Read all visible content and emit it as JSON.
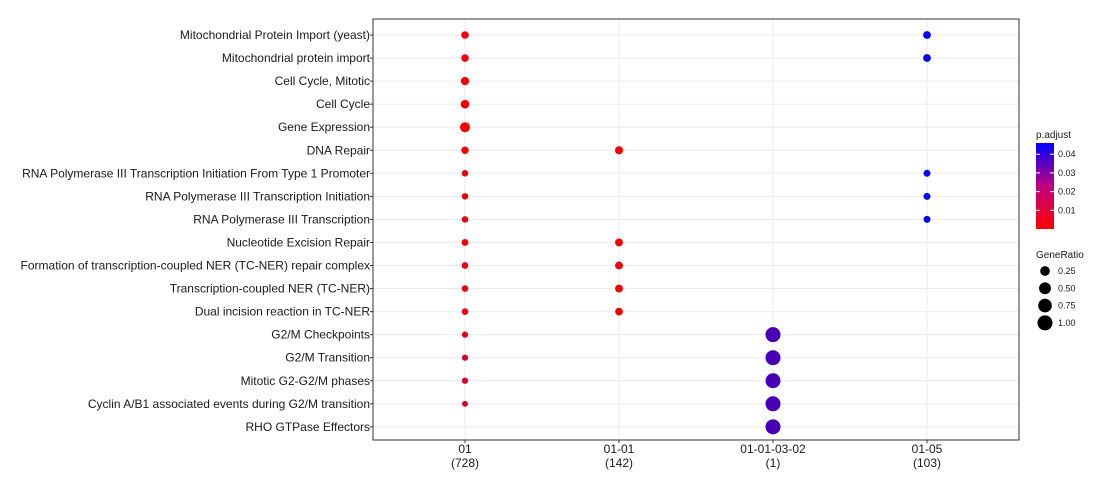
{
  "chart_data": {
    "type": "scatter",
    "title": "",
    "xlabel": "",
    "ylabel": "",
    "grid": true,
    "categories_y": [
      "Mitochondrial Protein Import (yeast)",
      "Mitochondrial protein import",
      "Cell Cycle, Mitotic",
      "Cell Cycle",
      "Gene Expression",
      "DNA Repair",
      "RNA Polymerase III Transcription Initiation From Type 1 Promoter",
      "RNA Polymerase III Transcription Initiation",
      "RNA Polymerase III Transcription",
      "Nucleotide Excision Repair",
      "Formation of transcription-coupled NER (TC-NER) repair complex",
      "Transcription-coupled NER (TC-NER)",
      "Dual incision reaction in TC-NER",
      "G2/M Checkpoints",
      "G2/M Transition",
      "Mitotic G2-G2/M phases",
      "Cyclin A/B1 associated events during G2/M transition",
      "RHO GTPase Effectors"
    ],
    "categories_x": [
      {
        "name": "01",
        "count": "(728)"
      },
      {
        "name": "01-01",
        "count": "(142)"
      },
      {
        "name": "01-01-03-02",
        "count": "(1)"
      },
      {
        "name": "01-05",
        "count": "(103)"
      }
    ],
    "points": [
      {
        "x": "01",
        "y": "Mitochondrial Protein Import (yeast)",
        "gene_ratio": 0.09,
        "p_adjust": 0.001
      },
      {
        "x": "01",
        "y": "Mitochondrial protein import",
        "gene_ratio": 0.09,
        "p_adjust": 0.001
      },
      {
        "x": "01",
        "y": "Cell Cycle, Mitotic",
        "gene_ratio": 0.14,
        "p_adjust": 0.001
      },
      {
        "x": "01",
        "y": "Cell Cycle",
        "gene_ratio": 0.16,
        "p_adjust": 0.001
      },
      {
        "x": "01",
        "y": "Gene Expression",
        "gene_ratio": 0.28,
        "p_adjust": 0.001
      },
      {
        "x": "01",
        "y": "DNA Repair",
        "gene_ratio": 0.08,
        "p_adjust": 0.001
      },
      {
        "x": "01",
        "y": "RNA Polymerase III Transcription Initiation From Type 1 Promoter",
        "gene_ratio": 0.04,
        "p_adjust": 0.003
      },
      {
        "x": "01",
        "y": "RNA Polymerase III Transcription Initiation",
        "gene_ratio": 0.04,
        "p_adjust": 0.003
      },
      {
        "x": "01",
        "y": "RNA Polymerase III Transcription",
        "gene_ratio": 0.04,
        "p_adjust": 0.003
      },
      {
        "x": "01",
        "y": "Nucleotide Excision Repair",
        "gene_ratio": 0.05,
        "p_adjust": 0.002
      },
      {
        "x": "01",
        "y": "Formation of transcription-coupled NER (TC-NER) repair complex",
        "gene_ratio": 0.045,
        "p_adjust": 0.003
      },
      {
        "x": "01",
        "y": "Transcription-coupled NER (TC-NER)",
        "gene_ratio": 0.045,
        "p_adjust": 0.003
      },
      {
        "x": "01",
        "y": "Dual incision reaction in TC-NER",
        "gene_ratio": 0.045,
        "p_adjust": 0.003
      },
      {
        "x": "01",
        "y": "G2/M Checkpoints",
        "gene_ratio": 0.03,
        "p_adjust": 0.005
      },
      {
        "x": "01",
        "y": "G2/M Transition",
        "gene_ratio": 0.03,
        "p_adjust": 0.006
      },
      {
        "x": "01",
        "y": "Mitotic G2-G2/M phases",
        "gene_ratio": 0.03,
        "p_adjust": 0.006
      },
      {
        "x": "01",
        "y": "Cyclin A/B1 associated events during G2/M transition",
        "gene_ratio": 0.02,
        "p_adjust": 0.007
      },
      {
        "x": "01-01",
        "y": "DNA Repair",
        "gene_ratio": 0.12,
        "p_adjust": 0.001
      },
      {
        "x": "01-01",
        "y": "Nucleotide Excision Repair",
        "gene_ratio": 0.11,
        "p_adjust": 0.001
      },
      {
        "x": "01-01",
        "y": "Formation of transcription-coupled NER (TC-NER) repair complex",
        "gene_ratio": 0.11,
        "p_adjust": 0.001
      },
      {
        "x": "01-01",
        "y": "Transcription-coupled NER (TC-NER)",
        "gene_ratio": 0.11,
        "p_adjust": 0.001
      },
      {
        "x": "01-01",
        "y": "Dual incision reaction in TC-NER",
        "gene_ratio": 0.1,
        "p_adjust": 0.001
      },
      {
        "x": "01-01-03-02",
        "y": "G2/M Checkpoints",
        "gene_ratio": 1.0,
        "p_adjust": 0.033
      },
      {
        "x": "01-01-03-02",
        "y": "G2/M Transition",
        "gene_ratio": 1.0,
        "p_adjust": 0.033
      },
      {
        "x": "01-01-03-02",
        "y": "Mitotic G2-G2/M phases",
        "gene_ratio": 1.0,
        "p_adjust": 0.033
      },
      {
        "x": "01-01-03-02",
        "y": "Cyclin A/B1 associated events during G2/M transition",
        "gene_ratio": 1.0,
        "p_adjust": 0.033
      },
      {
        "x": "01-01-03-02",
        "y": "RHO GTPase Effectors",
        "gene_ratio": 1.0,
        "p_adjust": 0.033
      },
      {
        "x": "01-05",
        "y": "Mitochondrial Protein Import (yeast)",
        "gene_ratio": 0.1,
        "p_adjust": 0.045
      },
      {
        "x": "01-05",
        "y": "Mitochondrial protein import",
        "gene_ratio": 0.1,
        "p_adjust": 0.045
      },
      {
        "x": "01-05",
        "y": "RNA Polymerase III Transcription Initiation From Type 1 Promoter",
        "gene_ratio": 0.06,
        "p_adjust": 0.044
      },
      {
        "x": "01-05",
        "y": "RNA Polymerase III Transcription Initiation",
        "gene_ratio": 0.06,
        "p_adjust": 0.044
      },
      {
        "x": "01-05",
        "y": "RNA Polymerase III Transcription",
        "gene_ratio": 0.06,
        "p_adjust": 0.044
      }
    ],
    "color_legend": {
      "title": "p.adjust",
      "ticks": [
        "0.01",
        "0.02",
        "0.03",
        "0.04"
      ],
      "tick_values": [
        0.01,
        0.02,
        0.03,
        0.04
      ],
      "range": [
        0.0,
        0.046
      ],
      "low_color": "#ff0000",
      "high_color": "#0000ff"
    },
    "size_legend": {
      "title": "GeneRatio",
      "ticks": [
        "0.25",
        "0.50",
        "0.75",
        "1.00"
      ],
      "tick_values": [
        0.25,
        0.5,
        0.75,
        1.0
      ]
    },
    "legend_position": "right"
  }
}
